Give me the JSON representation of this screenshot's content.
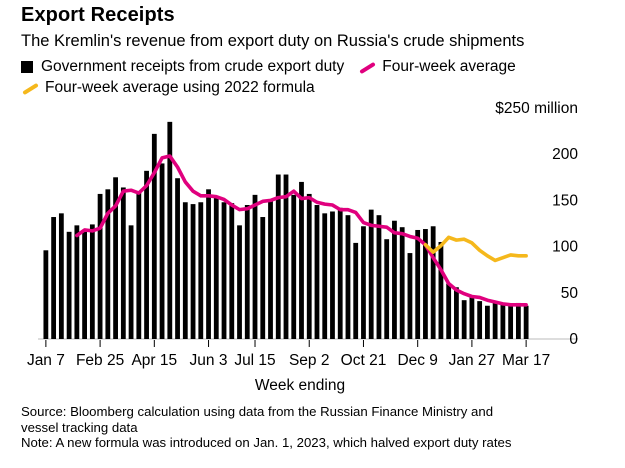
{
  "header": {
    "title": "Export Receipts",
    "subtitle": "The Kremlin's revenue from export duty on Russia's crude shipments"
  },
  "legend": {
    "items": [
      {
        "label": "Government receipts from crude export duty",
        "color": "#000000",
        "icon": "square-icon"
      },
      {
        "label": "Four-week average",
        "color": "#e0007e",
        "icon": "line-icon"
      },
      {
        "label": "Four-week average using 2022 formula",
        "color": "#f5b81c",
        "icon": "line-icon"
      }
    ]
  },
  "chart_data": {
    "type": "bar",
    "title": "Export Receipts",
    "xlabel": "Week ending",
    "ylabel": "$ million",
    "ylim": [
      0,
      250
    ],
    "y_ticks": [
      {
        "value": 250,
        "label": "$250 million"
      },
      {
        "value": 200,
        "label": "200"
      },
      {
        "value": 150,
        "label": "150"
      },
      {
        "value": 100,
        "label": "100"
      },
      {
        "value": 50,
        "label": "50"
      },
      {
        "value": 0,
        "label": "0"
      }
    ],
    "x_tick_labels": [
      {
        "index": 0,
        "label": "Jan 7"
      },
      {
        "index": 7,
        "label": "Feb 25"
      },
      {
        "index": 14,
        "label": "Apr 15"
      },
      {
        "index": 21,
        "label": "Jun 3"
      },
      {
        "index": 27,
        "label": "Jul 15"
      },
      {
        "index": 34,
        "label": "Sep 2"
      },
      {
        "index": 41,
        "label": "Oct 21"
      },
      {
        "index": 48,
        "label": "Dec 9"
      },
      {
        "index": 55,
        "label": "Jan 27"
      },
      {
        "index": 62,
        "label": "Mar 17"
      }
    ],
    "series": [
      {
        "name": "Government receipts from crude export duty",
        "kind": "bar",
        "color": "#000000",
        "values": [
          96,
          132,
          136,
          116,
          123,
          116,
          124,
          157,
          162,
          175,
          164,
          123,
          160,
          182,
          222,
          190,
          235,
          174,
          148,
          146,
          148,
          162,
          153,
          148,
          147,
          123,
          145,
          156,
          132,
          150,
          178,
          178,
          156,
          170,
          157,
          145,
          136,
          138,
          142,
          134,
          104,
          122,
          140,
          134,
          108,
          128,
          121,
          93,
          118,
          119,
          122,
          105,
          60,
          56,
          42,
          46,
          41,
          36,
          41,
          39,
          38,
          39,
          36
        ]
      },
      {
        "name": "Four-week average",
        "kind": "line",
        "color": "#e0007e",
        "values": [
          null,
          null,
          null,
          null,
          112,
          118,
          117,
          120,
          136,
          144,
          160,
          161,
          158,
          166,
          180,
          196,
          198,
          186,
          170,
          160,
          155,
          155,
          154,
          151,
          145,
          140,
          141,
          145,
          149,
          150,
          153,
          154,
          160,
          152,
          153,
          148,
          146,
          145,
          140,
          140,
          137,
          126,
          123,
          122,
          121,
          115,
          114,
          111,
          109,
          102,
          88,
          75,
          60,
          53,
          49,
          46,
          45,
          42,
          40,
          38,
          37,
          37,
          37
        ]
      },
      {
        "name": "Four-week average using 2022 formula",
        "kind": "line",
        "color": "#f5b81c",
        "values": [
          null,
          null,
          null,
          null,
          null,
          null,
          null,
          null,
          null,
          null,
          null,
          null,
          null,
          null,
          null,
          null,
          null,
          null,
          null,
          null,
          null,
          null,
          null,
          null,
          null,
          null,
          null,
          null,
          null,
          null,
          null,
          null,
          null,
          null,
          null,
          null,
          null,
          null,
          null,
          null,
          null,
          null,
          null,
          null,
          null,
          null,
          null,
          null,
          null,
          102,
          94,
          101,
          110,
          107,
          108,
          104,
          96,
          90,
          85,
          88,
          91,
          90,
          90
        ]
      }
    ]
  },
  "footer": {
    "source_line1": "Source: Bloomberg calculation using data from the Russian Finance Ministry and",
    "source_line2": "vessel tracking data",
    "note": "Note: A new formula was introduced on Jan. 1, 2023, which halved export duty rates"
  }
}
